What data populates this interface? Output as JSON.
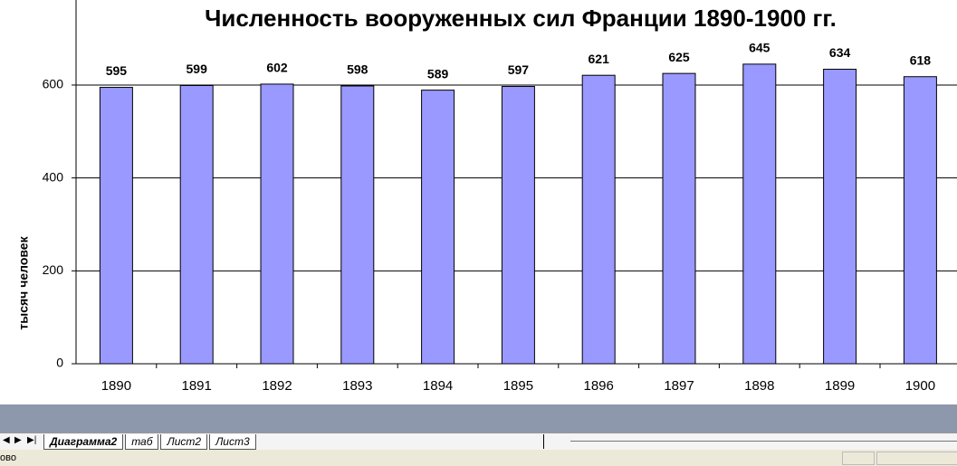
{
  "chart_data": {
    "type": "bar",
    "title": "Численность вооруженных сил Франции 1890-1900 гг.",
    "y_axis_label": "тысяч человек",
    "categories": [
      "1890",
      "1891",
      "1892",
      "1893",
      "1894",
      "1895",
      "1896",
      "1897",
      "1898",
      "1899",
      "1900"
    ],
    "values": [
      595,
      599,
      602,
      598,
      589,
      597,
      621,
      625,
      645,
      634,
      618
    ],
    "color": "#9999ff",
    "ylim": [
      0,
      800
    ],
    "yticks": [
      0,
      200,
      400,
      600
    ],
    "grid": true
  },
  "ui": {
    "sheet_tabs": [
      "Диаграмма2",
      "таб",
      "Лист2",
      "Лист3"
    ],
    "status": "ово"
  }
}
